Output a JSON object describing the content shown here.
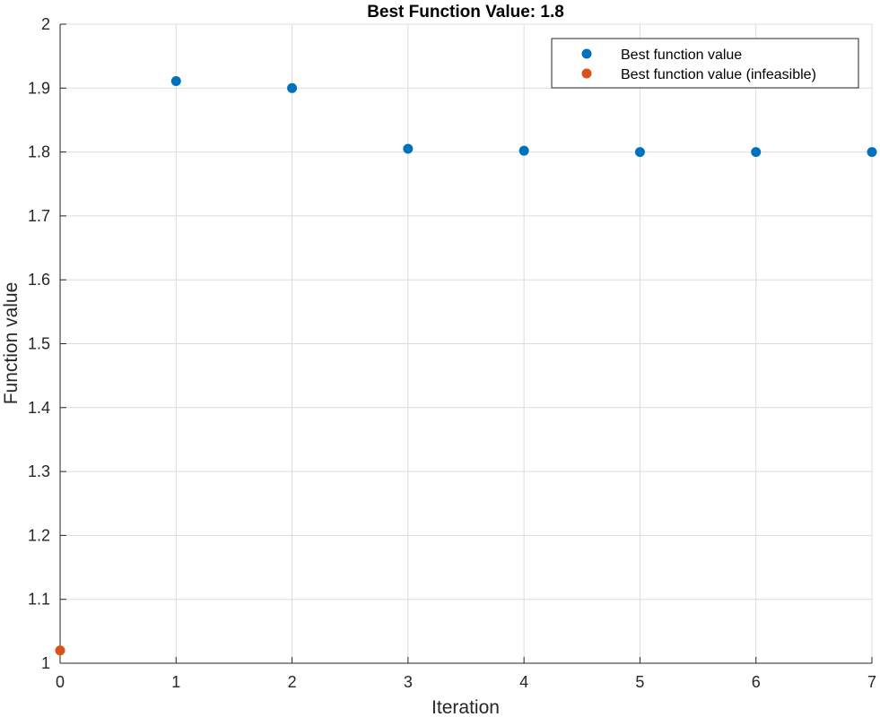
{
  "chart_data": {
    "type": "scatter",
    "title": "Best Function Value: 1.8",
    "xlabel": "Iteration",
    "ylabel": "Function value",
    "xlim": [
      0,
      7
    ],
    "ylim": [
      1,
      2
    ],
    "xticks": [
      "0",
      "1",
      "2",
      "3",
      "4",
      "5",
      "6",
      "7"
    ],
    "yticks": [
      "1",
      "1.1",
      "1.2",
      "1.3",
      "1.4",
      "1.5",
      "1.6",
      "1.7",
      "1.8",
      "1.9",
      "2"
    ],
    "grid": true,
    "legend_position": "top-right",
    "series": [
      {
        "name": "Best function value",
        "color": "#0072BD",
        "marker": "circle",
        "points": [
          {
            "x": 1,
            "y": 1.911
          },
          {
            "x": 2,
            "y": 1.9
          },
          {
            "x": 3,
            "y": 1.805
          },
          {
            "x": 4,
            "y": 1.802
          },
          {
            "x": 5,
            "y": 1.8
          },
          {
            "x": 6,
            "y": 1.8
          },
          {
            "x": 7,
            "y": 1.8
          }
        ]
      },
      {
        "name": "Best function value (infeasible)",
        "color": "#D95319",
        "marker": "circle",
        "points": [
          {
            "x": 0,
            "y": 1.02
          }
        ]
      }
    ]
  }
}
